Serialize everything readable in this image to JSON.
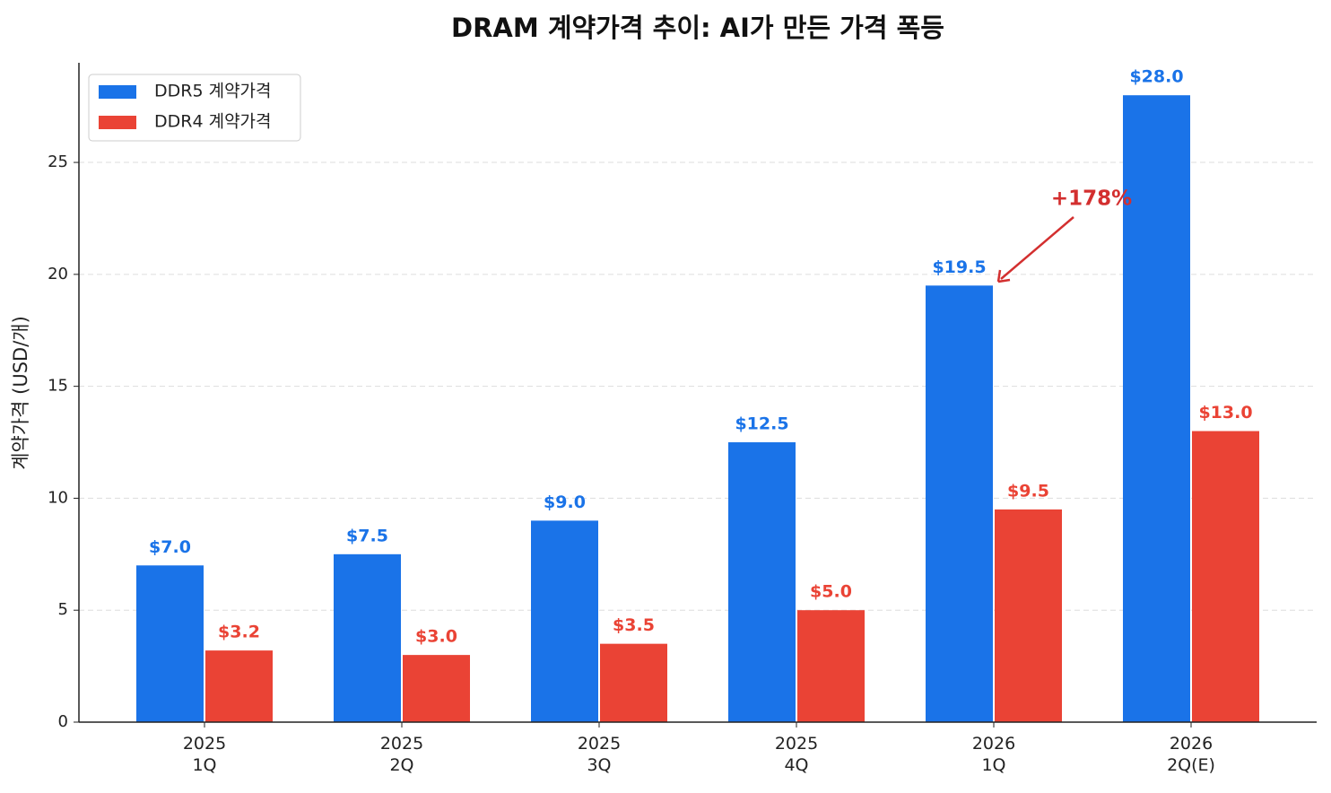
{
  "chart_data": {
    "type": "bar",
    "title": "DRAM 계약가격 추이: AI가 만든 가격 폭등",
    "y_label": "계약가격 (USD/개)",
    "categories": [
      "2025\n1Q",
      "2025\n2Q",
      "2025\n3Q",
      "2025\n4Q",
      "2026\n1Q",
      "2026\n2Q(E)"
    ],
    "series": [
      {
        "name": "DDR5 계약가격",
        "color": "#1a73e8",
        "values": [
          7.0,
          7.5,
          9.0,
          12.5,
          19.5,
          28.0
        ],
        "value_labels": [
          "$7.0",
          "$7.5",
          "$9.0",
          "$12.5",
          "$19.5",
          "$28.0"
        ]
      },
      {
        "name": "DDR4 계약가격",
        "color": "#ea4335",
        "values": [
          3.2,
          3.0,
          3.5,
          5.0,
          9.5,
          13.0
        ],
        "value_labels": [
          "$3.2",
          "$3.0",
          "$3.5",
          "$5.0",
          "$9.5",
          "$13.0"
        ]
      }
    ],
    "annotation": {
      "text": "+178%",
      "color": "#d32f2f"
    },
    "ylim": [
      0,
      29.45
    ],
    "yticks": [
      0,
      5,
      10,
      15,
      20,
      25
    ],
    "grid": true,
    "legend": "upper left"
  }
}
